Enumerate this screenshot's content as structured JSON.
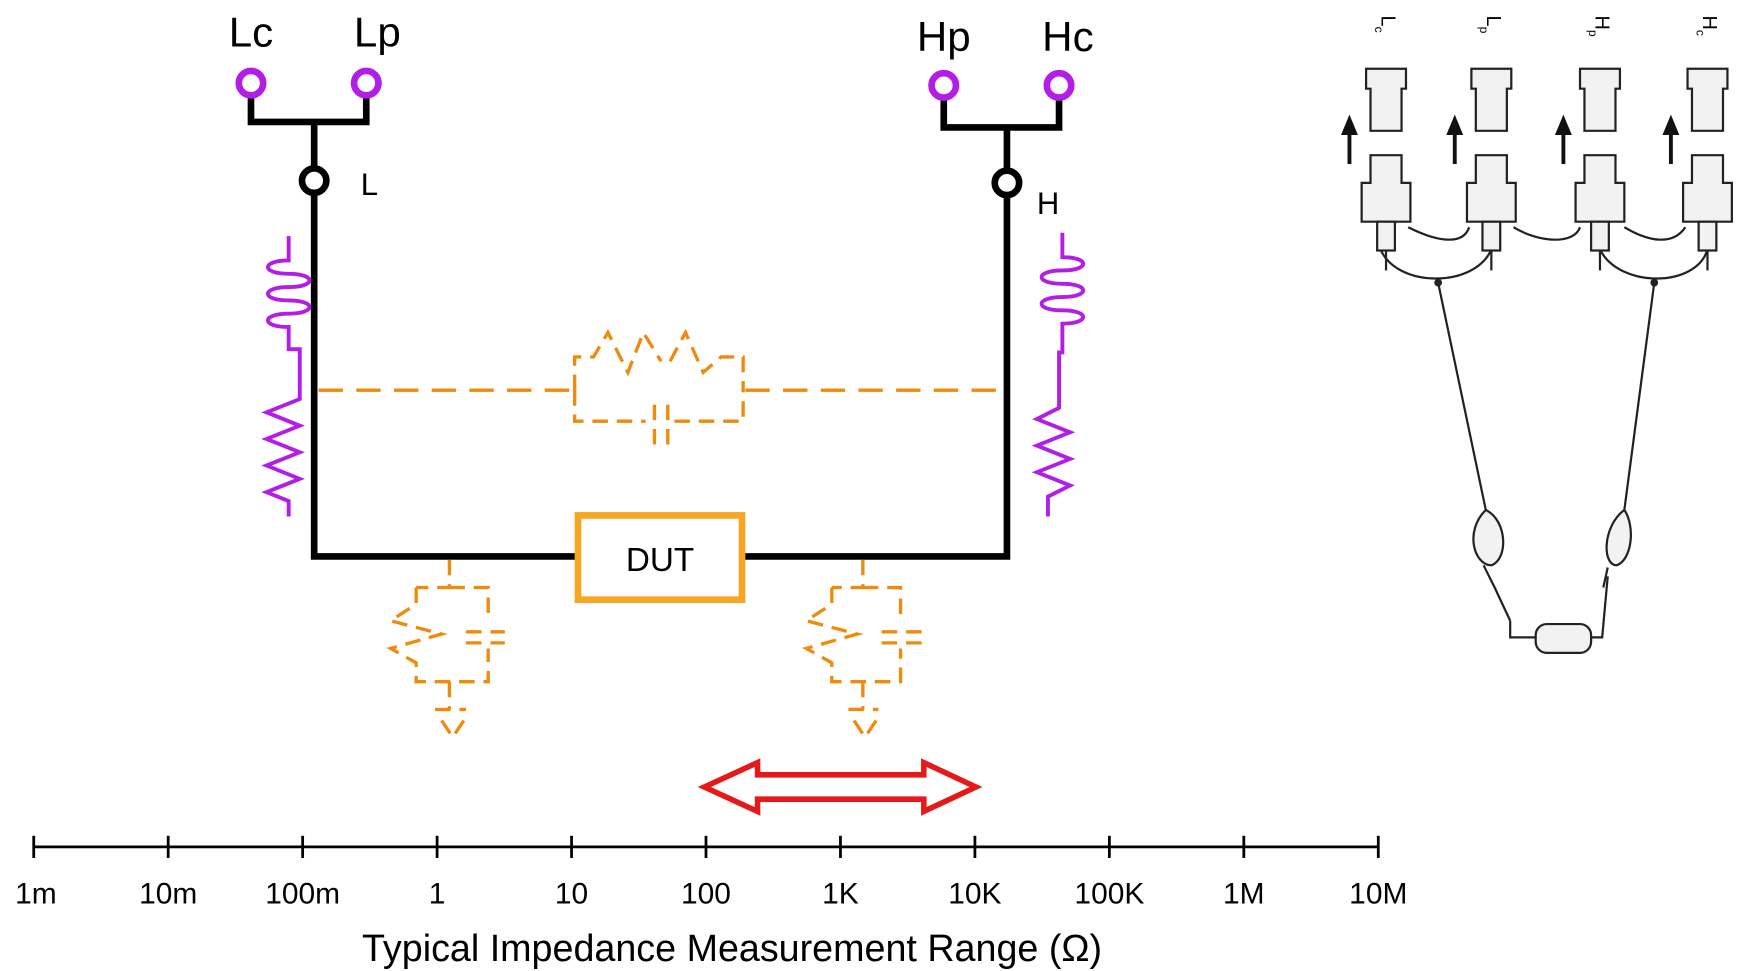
{
  "terminals": {
    "lc": "Lc",
    "lp": "Lp",
    "hp": "Hp",
    "hc": "Hc",
    "low": "L",
    "high": "H"
  },
  "dut": "DUT",
  "scale": {
    "labels": [
      "1m",
      "10m",
      "100m",
      "1",
      "10",
      "100",
      "1K",
      "10K",
      "100K",
      "1M",
      "10M"
    ],
    "title": "Typical Impedance Measurement Range (Ω)"
  },
  "connectors": [
    {
      "letter": "L",
      "sub": "c"
    },
    {
      "letter": "L",
      "sub": "p"
    },
    {
      "letter": "H",
      "sub": "p"
    },
    {
      "letter": "H",
      "sub": "c"
    }
  ]
}
